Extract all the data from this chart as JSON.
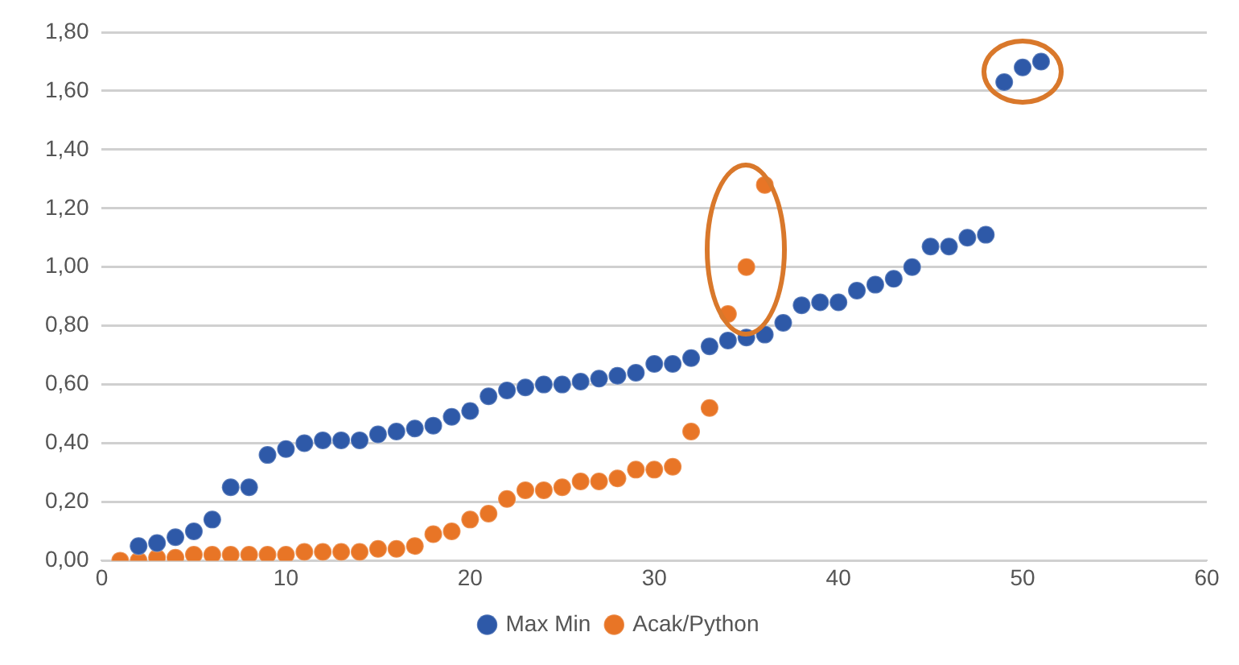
{
  "chart_data": {
    "type": "scatter",
    "marker": "circle",
    "grid": "y",
    "legend": "bottom",
    "xlim": [
      0,
      60
    ],
    "xticks": [
      0,
      10,
      20,
      30,
      40,
      50,
      60
    ],
    "ylim": [
      0,
      1.8
    ],
    "yticks": [
      {
        "value": 0,
        "label": "0,00"
      },
      {
        "value": 0.2,
        "label": "0,20"
      },
      {
        "value": 0.4,
        "label": "0,40"
      },
      {
        "value": 0.6,
        "label": "0,60"
      },
      {
        "value": 0.8,
        "label": "0,80"
      },
      {
        "value": 1,
        "label": "1,00"
      },
      {
        "value": 1.2,
        "label": "1,20"
      },
      {
        "value": 1.4,
        "label": "1,40"
      },
      {
        "value": 1.6,
        "label": "1,60"
      },
      {
        "value": 1.8,
        "label": "1,80"
      }
    ],
    "series": [
      {
        "name": "Max Min",
        "color": "#2e59a8",
        "x": [
          2,
          3,
          4,
          5,
          6,
          7,
          8,
          9,
          10,
          11,
          12,
          13,
          14,
          15,
          16,
          17,
          18,
          19,
          20,
          21,
          22,
          23,
          24,
          25,
          26,
          27,
          28,
          29,
          30,
          31,
          32,
          33,
          34,
          35,
          36,
          37,
          38,
          39,
          40,
          41,
          42,
          43,
          44,
          45,
          46,
          47,
          48,
          49,
          50,
          51
        ],
        "values": [
          0.05,
          0.06,
          0.08,
          0.1,
          0.14,
          0.25,
          0.25,
          0.36,
          0.38,
          0.4,
          0.41,
          0.41,
          0.41,
          0.43,
          0.44,
          0.45,
          0.46,
          0.49,
          0.51,
          0.56,
          0.58,
          0.59,
          0.6,
          0.6,
          0.61,
          0.62,
          0.63,
          0.64,
          0.67,
          0.67,
          0.69,
          0.73,
          0.75,
          0.76,
          0.77,
          0.81,
          0.87,
          0.88,
          0.88,
          0.92,
          0.94,
          0.96,
          1.0,
          1.07,
          1.07,
          1.1,
          1.11,
          1.63,
          1.68,
          1.7
        ]
      },
      {
        "name": "Acak/Python",
        "color": "#e87526",
        "x": [
          1,
          2,
          3,
          4,
          5,
          6,
          7,
          8,
          9,
          10,
          11,
          12,
          13,
          14,
          15,
          16,
          17,
          18,
          19,
          20,
          21,
          22,
          23,
          24,
          25,
          26,
          27,
          28,
          29,
          30,
          31,
          32,
          33,
          34,
          35,
          36
        ],
        "values": [
          0,
          0,
          0.01,
          0.01,
          0.02,
          0.02,
          0.02,
          0.02,
          0.02,
          0.02,
          0.03,
          0.03,
          0.03,
          0.03,
          0.04,
          0.04,
          0.05,
          0.09,
          0.1,
          0.14,
          0.16,
          0.21,
          0.24,
          0.24,
          0.25,
          0.27,
          0.27,
          0.28,
          0.31,
          0.31,
          0.32,
          0.44,
          0.52,
          0.84,
          1.0,
          1.28
        ]
      }
    ]
  }
}
